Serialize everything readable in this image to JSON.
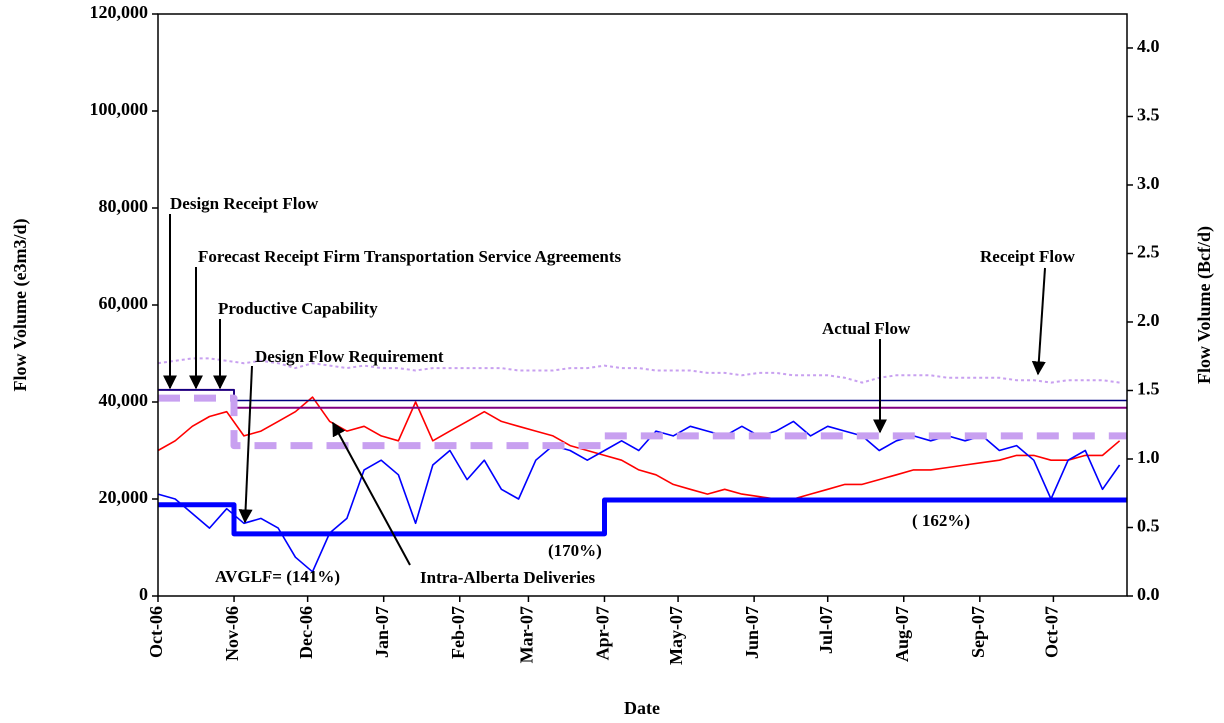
{
  "chart_data": {
    "type": "line",
    "x_label": "Date",
    "y_label": "Flow Volume (e3m3/d)",
    "y2_label": "Flow Volume  (Bcf/d)",
    "xlim": [
      0,
      395
    ],
    "xticks": [
      {
        "value": 0,
        "label": "Oct-06"
      },
      {
        "value": 31,
        "label": "Nov-06"
      },
      {
        "value": 61,
        "label": "Dec-06"
      },
      {
        "value": 92,
        "label": "Jan-07"
      },
      {
        "value": 123,
        "label": "Feb-07"
      },
      {
        "value": 151,
        "label": "Mar-07"
      },
      {
        "value": 182,
        "label": "Apr-07"
      },
      {
        "value": 212,
        "label": "May-07"
      },
      {
        "value": 243,
        "label": "Jun-07"
      },
      {
        "value": 273,
        "label": "Jul-07"
      },
      {
        "value": 304,
        "label": "Aug-07"
      },
      {
        "value": 335,
        "label": "Sep-07"
      },
      {
        "value": 365,
        "label": "Oct-07"
      }
    ],
    "ylim": [
      0,
      120000
    ],
    "yticks": [
      0,
      {
        "value": 20000,
        "label": "20,000"
      },
      {
        "value": 40000,
        "label": "40,000"
      },
      {
        "value": 60000,
        "label": "60,000"
      },
      {
        "value": 80000,
        "label": "80,000"
      },
      {
        "value": 100000,
        "label": "100,000"
      },
      {
        "value": 120000,
        "label": "120,000"
      }
    ],
    "y2lim": [
      0,
      4.248
    ],
    "y2ticks": [
      {
        "value": 0,
        "label": "0.0"
      },
      0.5,
      {
        "value": 1,
        "label": "1.0"
      },
      1.5,
      {
        "value": 2,
        "label": "2.0"
      },
      2.5,
      {
        "value": 3,
        "label": "3.0"
      },
      3.5,
      {
        "value": 4,
        "label": "4.0"
      }
    ],
    "x": [
      0,
      7,
      14,
      21,
      28,
      35,
      42,
      49,
      56,
      63,
      70,
      77,
      84,
      91,
      98,
      105,
      112,
      119,
      126,
      133,
      140,
      147,
      154,
      161,
      168,
      175,
      182,
      189,
      196,
      203,
      210,
      217,
      224,
      231,
      238,
      245,
      252,
      259,
      266,
      273,
      280,
      287,
      294,
      301,
      308,
      315,
      322,
      329,
      336,
      343,
      350,
      357,
      364,
      371,
      378,
      385,
      392
    ],
    "series": [
      {
        "name": "Receipt Flow",
        "color": "#c8a0f0",
        "width": 2,
        "dash": "3,3",
        "values": [
          48000,
          48500,
          49000,
          49000,
          48500,
          48000,
          48500,
          48000,
          47000,
          48000,
          47500,
          47000,
          47500,
          47000,
          47000,
          46500,
          47000,
          47000,
          47000,
          47000,
          47000,
          46500,
          46500,
          46500,
          47000,
          47000,
          47500,
          47000,
          47000,
          46500,
          46500,
          46500,
          46000,
          46000,
          45500,
          46000,
          46000,
          45500,
          45500,
          45500,
          45000,
          44000,
          45000,
          45500,
          45500,
          45500,
          45000,
          45000,
          45000,
          45000,
          44500,
          44500,
          44000,
          44500,
          44500,
          44500,
          44000
        ]
      },
      {
        "name": "Intra-Alberta Deliveries",
        "color": "#ff0000",
        "width": 1.6,
        "dash": "none",
        "values": [
          30000,
          32000,
          35000,
          37000,
          38000,
          33000,
          34000,
          36000,
          38000,
          41000,
          36000,
          34000,
          35000,
          33000,
          32000,
          40000,
          32000,
          34000,
          36000,
          38000,
          36000,
          35000,
          34000,
          33000,
          31000,
          30000,
          29000,
          28000,
          26000,
          25000,
          23000,
          22000,
          21000,
          22000,
          21000,
          20500,
          20000,
          20000,
          21000,
          22000,
          23000,
          23000,
          24000,
          25000,
          26000,
          26000,
          26500,
          27000,
          27500,
          28000,
          29000,
          29000,
          28000,
          28000,
          29000,
          29000,
          32000
        ]
      },
      {
        "name": "Actual Flow",
        "color": "#0000ff",
        "width": 1.6,
        "dash": "none",
        "values": [
          21000,
          20000,
          17000,
          14000,
          18000,
          15000,
          16000,
          14000,
          8000,
          5000,
          13000,
          16000,
          26000,
          28000,
          25000,
          15000,
          27000,
          30000,
          24000,
          28000,
          22000,
          20000,
          28000,
          31000,
          30000,
          28000,
          30000,
          32000,
          30000,
          34000,
          33000,
          35000,
          34000,
          33000,
          35000,
          33000,
          34000,
          36000,
          33000,
          35000,
          34000,
          33000,
          30000,
          32000,
          33000,
          32000,
          33000,
          32000,
          33000,
          30000,
          31000,
          28000,
          20000,
          28000,
          30000,
          22000,
          27000
        ]
      },
      {
        "name": "Design Receipt Flow",
        "color": "#800080",
        "width": 2,
        "dash": "none",
        "x": [
          0,
          31,
          31,
          395
        ],
        "values": [
          42500,
          42500,
          38800,
          38800
        ]
      },
      {
        "name": "Forecast Receipt Firm Transportation Service Agreements",
        "color": "#000080",
        "width": 1.5,
        "dash": "none",
        "x": [
          0,
          31,
          31,
          395
        ],
        "values": [
          42500,
          42500,
          40300,
          40300
        ]
      },
      {
        "name": "Productive Capability",
        "color": "#c8a0f0",
        "width": 7,
        "dash": "22,14",
        "x": [
          0,
          31,
          31,
          182,
          182,
          395
        ],
        "values": [
          40800,
          40800,
          31000,
          31000,
          33000,
          33000
        ]
      },
      {
        "name": "Design Flow Requirement",
        "color": "#0000ff",
        "width": 5,
        "dash": "none",
        "x": [
          0,
          31,
          31,
          182,
          182,
          395
        ],
        "values": [
          18800,
          18800,
          12800,
          12800,
          19800,
          19800
        ]
      }
    ],
    "annotations": [
      "AVGLF= (141%)",
      "(170%)",
      "( 162%)"
    ]
  }
}
